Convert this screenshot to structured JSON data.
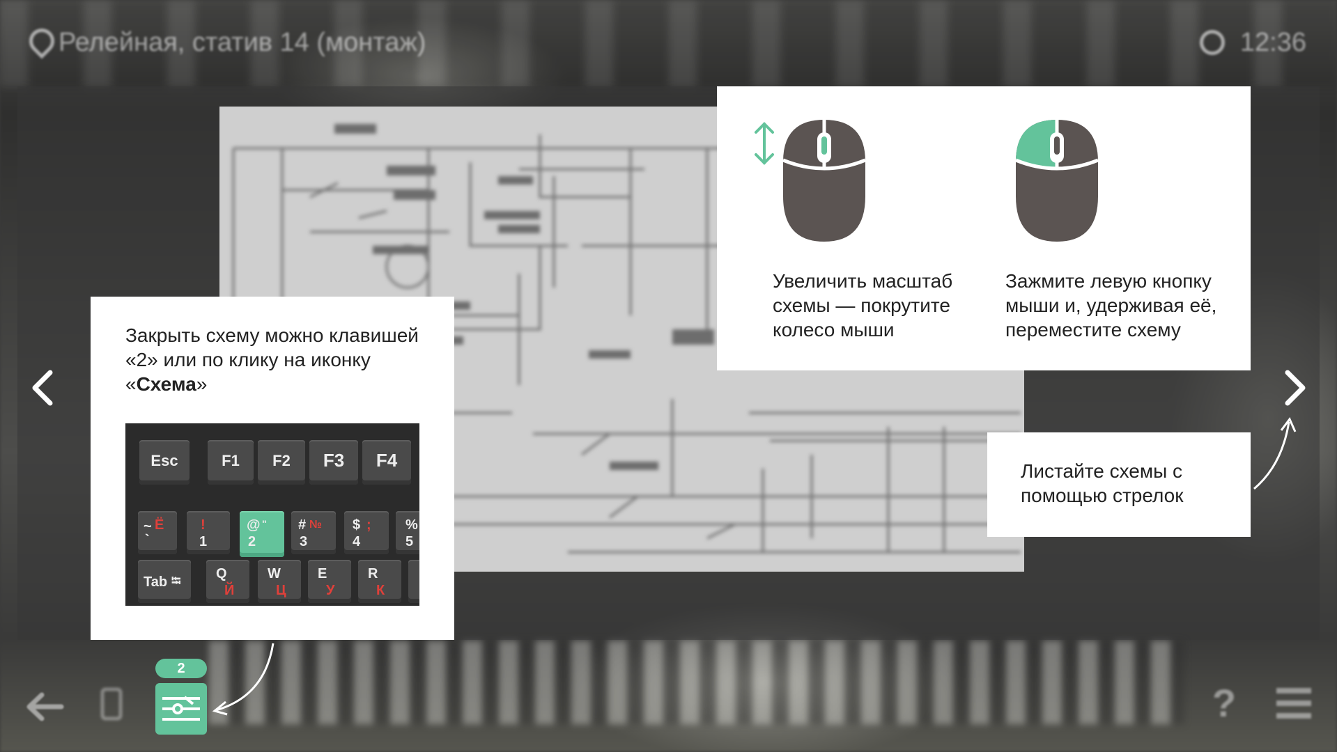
{
  "header": {
    "location": "Релейная, статив 14 (монтаж)",
    "time": "12:36"
  },
  "cards": {
    "close": {
      "text_before": "Закрыть схему можно клавишей «2» или по клику на иконку «",
      "text_bold": "Схема",
      "text_after": "»"
    },
    "zoom": {
      "text": "Увеличить масштаб схемы — покрутите колесо мыши"
    },
    "drag": {
      "text": "Зажмите левую кнопку мыши и, удерживая её, переместите схему"
    },
    "arrows": {
      "text": "Листайте схемы с помощью стрелок"
    }
  },
  "keyboard": {
    "function_row": [
      "Esc",
      "F1",
      "F2",
      "F3",
      "F4"
    ],
    "number_row": [
      {
        "top": "~",
        "bottom": "`",
        "alt": "Ё"
      },
      {
        "top": "!",
        "bottom": "1",
        "alt": ""
      },
      {
        "top": "@",
        "bottom": "2",
        "alt": "\""
      },
      {
        "top": "#",
        "bottom": "3",
        "alt": "№"
      },
      {
        "top": "$",
        "bottom": "4",
        "alt": ";"
      },
      {
        "top": "%",
        "bottom": "5",
        "alt": ""
      }
    ],
    "letter_row": [
      {
        "top": "Tab",
        "bottom": ""
      },
      {
        "top": "Q",
        "bottom": "Й"
      },
      {
        "top": "W",
        "bottom": "Ц"
      },
      {
        "top": "E",
        "bottom": "У"
      },
      {
        "top": "R",
        "bottom": "К"
      }
    ],
    "active_key": "2"
  },
  "toolbar": {
    "scheme_badge": "2",
    "help": "?"
  },
  "colors": {
    "accent": "#63c39b",
    "mouse": "#5b5452",
    "panel_bg": "#ffffff"
  },
  "icons": {
    "location": "location-pin-icon",
    "timer": "timer-icon",
    "scheme": "scheme-sliders-icon",
    "mouse": "mouse-icon"
  }
}
